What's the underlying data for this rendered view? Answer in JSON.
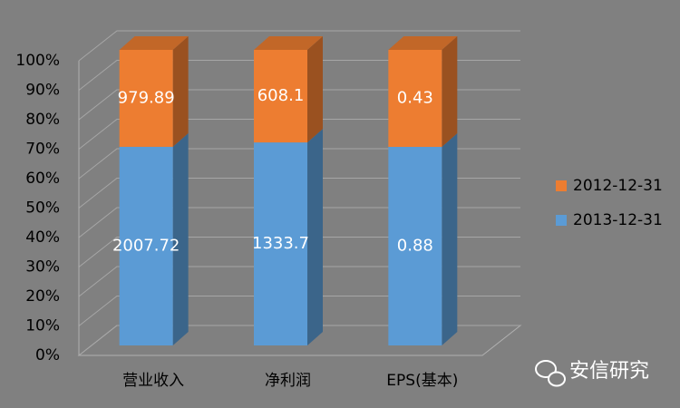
{
  "chart_data": {
    "type": "bar",
    "stacking": "percent",
    "categories": [
      "营业收入",
      "净利润",
      "EPS(基本)"
    ],
    "series": [
      {
        "name": "2013-12-31",
        "color": "#5b9bd5",
        "values": [
          2007.72,
          1333.7,
          0.88
        ]
      },
      {
        "name": "2012-12-31",
        "color": "#ed7d31",
        "values": [
          979.89,
          608.1,
          0.43
        ]
      }
    ],
    "ylim": [
      0,
      100
    ],
    "yticks": [
      {
        "value": 0,
        "label": "0%"
      },
      {
        "value": 10,
        "label": "10%"
      },
      {
        "value": 20,
        "label": "20%"
      },
      {
        "value": 30,
        "label": "30%"
      },
      {
        "value": 40,
        "label": "40%"
      },
      {
        "value": 50,
        "label": "50%"
      },
      {
        "value": 60,
        "label": "60%"
      },
      {
        "value": 70,
        "label": "70%"
      },
      {
        "value": 80,
        "label": "80%"
      },
      {
        "value": 90,
        "label": "90%"
      },
      {
        "value": 100,
        "label": "100%"
      }
    ],
    "grid": true,
    "legend": "right",
    "watermark": "安信研究"
  }
}
